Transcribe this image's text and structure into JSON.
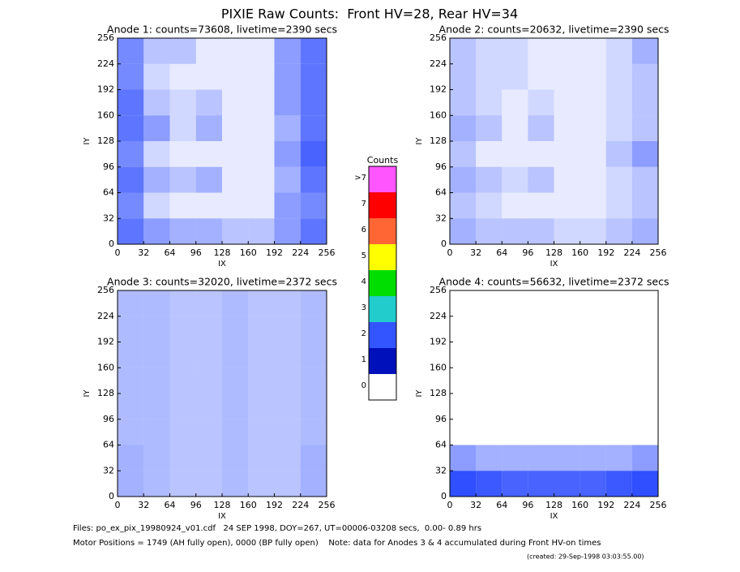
{
  "title": "PIXIE Raw Counts:  Front HV=28, Rear HV=34",
  "chart_data": [
    {
      "type": "heatmap",
      "title": "Anode 1: counts=73608, livetime=2390 secs",
      "xlabel": "IX",
      "ylabel": "IY",
      "xlim": [
        0,
        256
      ],
      "ylim": [
        0,
        256
      ],
      "xticks": [
        0,
        32,
        64,
        96,
        128,
        160,
        192,
        224,
        256
      ],
      "yticks": [
        0,
        32,
        64,
        96,
        128,
        160,
        192,
        224,
        256
      ],
      "color": "#1a3cff",
      "values": [
        [
          0.6,
          0.3,
          0.3,
          0.1,
          0.1,
          0.1,
          0.5,
          0.7
        ],
        [
          0.6,
          0.2,
          0.1,
          0.1,
          0.1,
          0.1,
          0.5,
          0.7
        ],
        [
          0.7,
          0.3,
          0.2,
          0.3,
          0.1,
          0.1,
          0.5,
          0.7
        ],
        [
          0.7,
          0.5,
          0.2,
          0.4,
          0.1,
          0.1,
          0.4,
          0.7
        ],
        [
          0.6,
          0.2,
          0.1,
          0.1,
          0.1,
          0.1,
          0.5,
          0.8
        ],
        [
          0.7,
          0.4,
          0.3,
          0.4,
          0.1,
          0.1,
          0.4,
          0.7
        ],
        [
          0.6,
          0.2,
          0.1,
          0.1,
          0.1,
          0.1,
          0.5,
          0.6
        ],
        [
          0.7,
          0.5,
          0.4,
          0.4,
          0.3,
          0.3,
          0.5,
          0.7
        ]
      ]
    },
    {
      "type": "heatmap",
      "title": "Anode 2: counts=20632, livetime=2390 secs",
      "xlabel": "IX",
      "ylabel": "IY",
      "xlim": [
        0,
        256
      ],
      "ylim": [
        0,
        256
      ],
      "xticks": [
        0,
        32,
        64,
        96,
        128,
        160,
        192,
        224,
        256
      ],
      "yticks": [
        0,
        32,
        64,
        96,
        128,
        160,
        192,
        224,
        256
      ],
      "color": "#1a3cff",
      "values": [
        [
          0.3,
          0.2,
          0.2,
          0.1,
          0.1,
          0.1,
          0.2,
          0.4
        ],
        [
          0.3,
          0.2,
          0.2,
          0.1,
          0.1,
          0.1,
          0.2,
          0.3
        ],
        [
          0.3,
          0.2,
          0.1,
          0.2,
          0.1,
          0.1,
          0.2,
          0.3
        ],
        [
          0.4,
          0.3,
          0.1,
          0.3,
          0.1,
          0.1,
          0.2,
          0.3
        ],
        [
          0.3,
          0.1,
          0.1,
          0.1,
          0.1,
          0.1,
          0.3,
          0.5
        ],
        [
          0.4,
          0.3,
          0.2,
          0.3,
          0.1,
          0.1,
          0.2,
          0.3
        ],
        [
          0.3,
          0.2,
          0.1,
          0.1,
          0.1,
          0.1,
          0.2,
          0.3
        ],
        [
          0.4,
          0.3,
          0.3,
          0.3,
          0.2,
          0.2,
          0.3,
          0.4
        ]
      ]
    },
    {
      "type": "heatmap",
      "title": "Anode 3: counts=32020, livetime=2372 secs",
      "xlabel": "IX",
      "ylabel": "IY",
      "xlim": [
        0,
        256
      ],
      "ylim": [
        0,
        256
      ],
      "xticks": [
        0,
        32,
        64,
        96,
        128,
        160,
        192,
        224,
        256
      ],
      "yticks": [
        0,
        32,
        64,
        96,
        128,
        160,
        192,
        224,
        256
      ],
      "color": "#1a3cff",
      "values": [
        [
          0.35,
          0.35,
          0.3,
          0.3,
          0.35,
          0.3,
          0.3,
          0.35
        ],
        [
          0.35,
          0.35,
          0.3,
          0.3,
          0.35,
          0.3,
          0.3,
          0.35
        ],
        [
          0.35,
          0.35,
          0.3,
          0.3,
          0.35,
          0.3,
          0.3,
          0.35
        ],
        [
          0.35,
          0.35,
          0.3,
          0.3,
          0.35,
          0.3,
          0.3,
          0.35
        ],
        [
          0.35,
          0.35,
          0.3,
          0.3,
          0.35,
          0.3,
          0.3,
          0.35
        ],
        [
          0.35,
          0.35,
          0.3,
          0.3,
          0.35,
          0.3,
          0.3,
          0.35
        ],
        [
          0.4,
          0.35,
          0.3,
          0.3,
          0.35,
          0.3,
          0.3,
          0.4
        ],
        [
          0.4,
          0.35,
          0.3,
          0.3,
          0.35,
          0.3,
          0.3,
          0.4
        ]
      ]
    },
    {
      "type": "heatmap",
      "title": "Anode 4: counts=56632, livetime=2372 secs",
      "xlabel": "IX",
      "ylabel": "IY",
      "xlim": [
        0,
        256
      ],
      "ylim": [
        0,
        256
      ],
      "xticks": [
        0,
        32,
        64,
        96,
        128,
        160,
        192,
        224,
        256
      ],
      "yticks": [
        0,
        32,
        64,
        96,
        128,
        160,
        192,
        224,
        256
      ],
      "color": "#1a3cff",
      "values": [
        [
          0,
          0,
          0,
          0,
          0,
          0,
          0,
          0
        ],
        [
          0,
          0,
          0,
          0,
          0,
          0,
          0,
          0
        ],
        [
          0,
          0,
          0,
          0,
          0,
          0,
          0,
          0
        ],
        [
          0,
          0,
          0,
          0,
          0,
          0,
          0,
          0
        ],
        [
          0,
          0,
          0,
          0,
          0,
          0,
          0,
          0
        ],
        [
          0,
          0,
          0,
          0,
          0,
          0,
          0,
          0
        ],
        [
          0.5,
          0.4,
          0.4,
          0.4,
          0.4,
          0.4,
          0.4,
          0.5
        ],
        [
          0.9,
          0.85,
          0.8,
          0.8,
          0.8,
          0.8,
          0.85,
          0.9
        ]
      ]
    }
  ],
  "colorbar": {
    "title": "Counts",
    "labels": [
      "0",
      "1",
      "2",
      "3",
      "4",
      "5",
      "6",
      "7",
      ">7"
    ],
    "colors": [
      "#ffffff",
      "#0011bb",
      "#3355ff",
      "#22cccc",
      "#00dd00",
      "#ffff00",
      "#ff6633",
      "#ff0000",
      "#ff55ff"
    ]
  },
  "footer": [
    "Files: po_ex_pix_19980924_v01.cdf   24 SEP 1998, DOY=267, UT=00006-03208 secs,  0.00- 0.89 hrs",
    "Motor Positions = 1749 (AH fully open), 0000 (BP fully open)    Note: data for Anodes 3 & 4 accumulated during Front HV-on times",
    "(created: 29-Sep-1998 03:03:55.00)"
  ]
}
